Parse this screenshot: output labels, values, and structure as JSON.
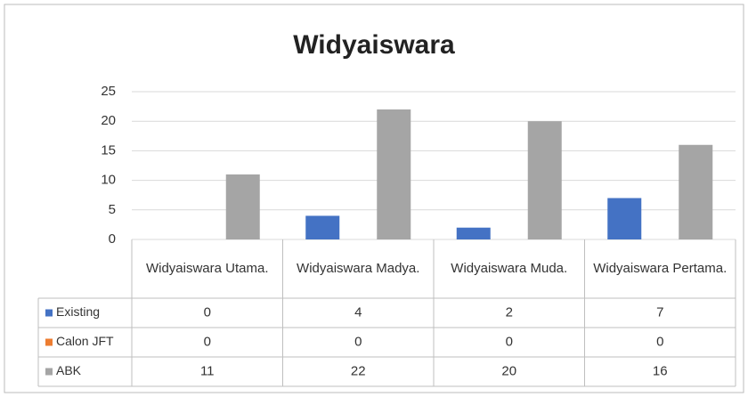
{
  "chart_data": {
    "type": "bar",
    "title": "Widyaiswara",
    "categories": [
      "Widyaiswara Utama.",
      "Widyaiswara Madya.",
      "Widyaiswara Muda.",
      "Widyaiswara Pertama."
    ],
    "series": [
      {
        "name": "Existing",
        "color": "#4472c4",
        "values": [
          0,
          4,
          2,
          7
        ]
      },
      {
        "name": "Calon JFT",
        "color": "#ed7d31",
        "values": [
          0,
          0,
          0,
          0
        ]
      },
      {
        "name": "ABK",
        "color": "#a5a5a5",
        "values": [
          11,
          22,
          20,
          16
        ]
      }
    ],
    "ylim": [
      0,
      25
    ],
    "yticks": [
      0,
      5,
      10,
      15,
      20,
      25
    ],
    "grid": true
  }
}
